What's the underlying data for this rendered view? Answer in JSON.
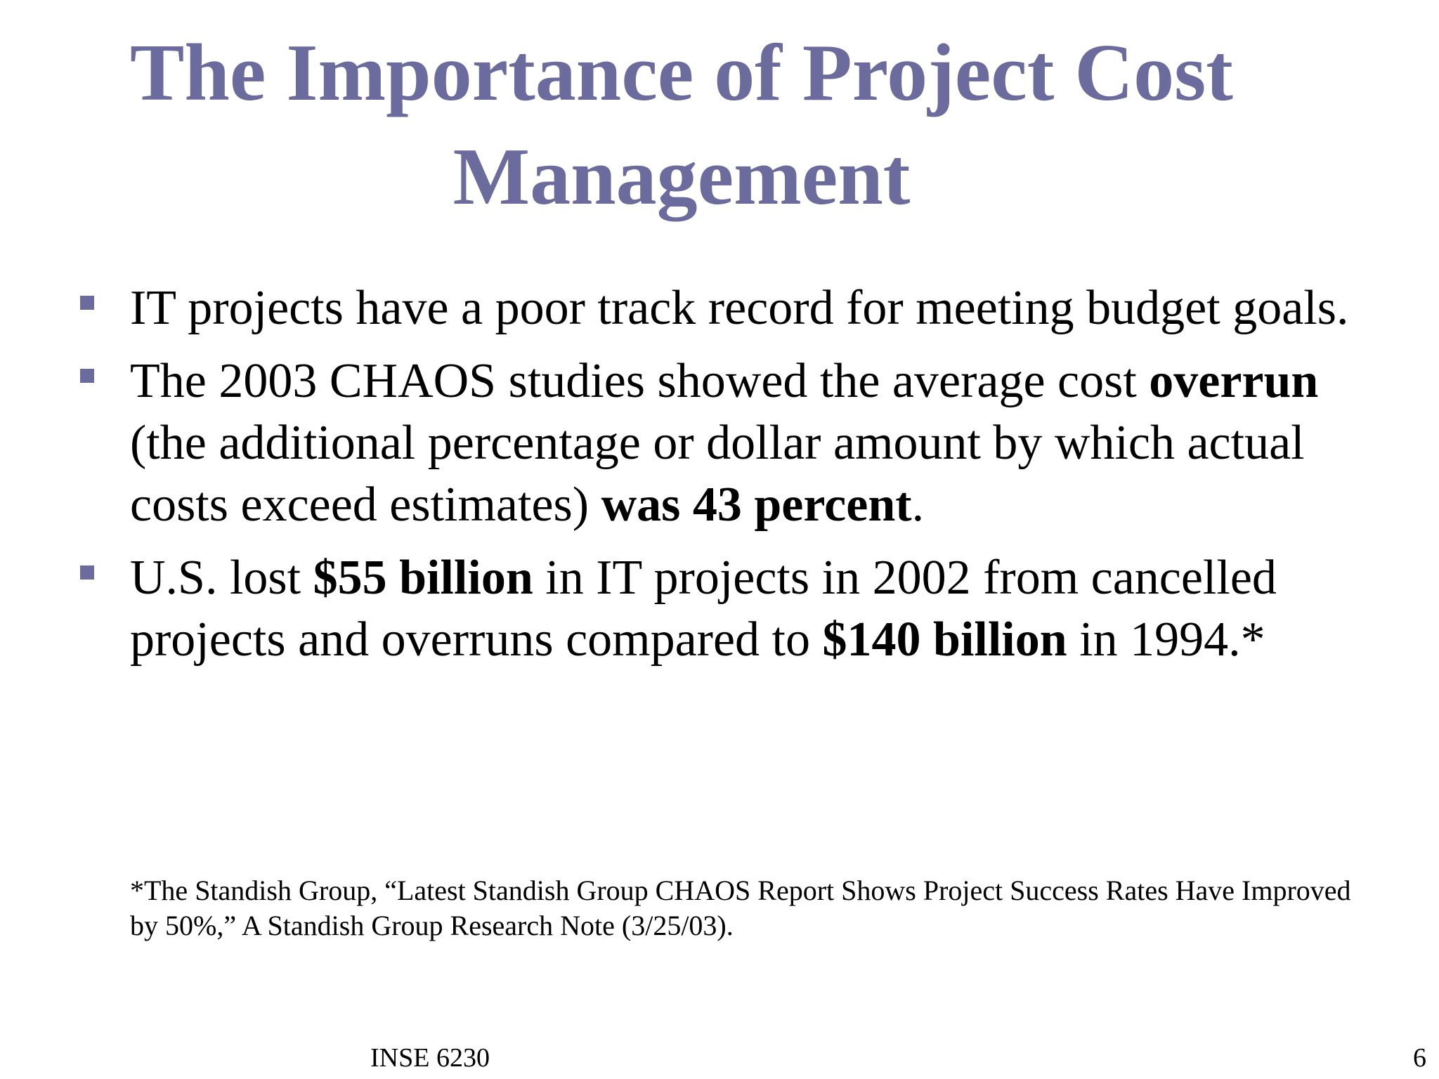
{
  "slide": {
    "title": "The Importance of Project Cost Management",
    "bullets": [
      {
        "segments": [
          {
            "text": "IT projects have a poor track record for meeting budget goals.",
            "bold": false
          }
        ]
      },
      {
        "segments": [
          {
            "text": "The 2003 CHAOS studies showed the average cost ",
            "bold": false
          },
          {
            "text": "overrun",
            "bold": true
          },
          {
            "text": " (the additional percentage or dollar amount by which actual costs exceed estimates) ",
            "bold": false
          },
          {
            "text": "was 43 percent",
            "bold": true
          },
          {
            "text": ".",
            "bold": false
          }
        ]
      },
      {
        "segments": [
          {
            "text": "U.S. lost ",
            "bold": false
          },
          {
            "text": "$55 billion",
            "bold": true
          },
          {
            "text": " in IT projects in 2002 from cancelled projects and overruns compared to ",
            "bold": false
          },
          {
            "text": "$140 billion",
            "bold": true
          },
          {
            "text": " in 1994.*",
            "bold": false
          }
        ]
      }
    ],
    "footnote": "*The Standish Group, “Latest Standish Group CHAOS Report Shows Project Success Rates Have Improved by 50%,” A Standish Group Research Note (3/25/03).",
    "footer": {
      "course": "INSE 6230",
      "page_number": "6"
    },
    "colors": {
      "title": "#6b6b9d",
      "bullet_marker": "#6b6b9d",
      "text": "#000000"
    }
  }
}
